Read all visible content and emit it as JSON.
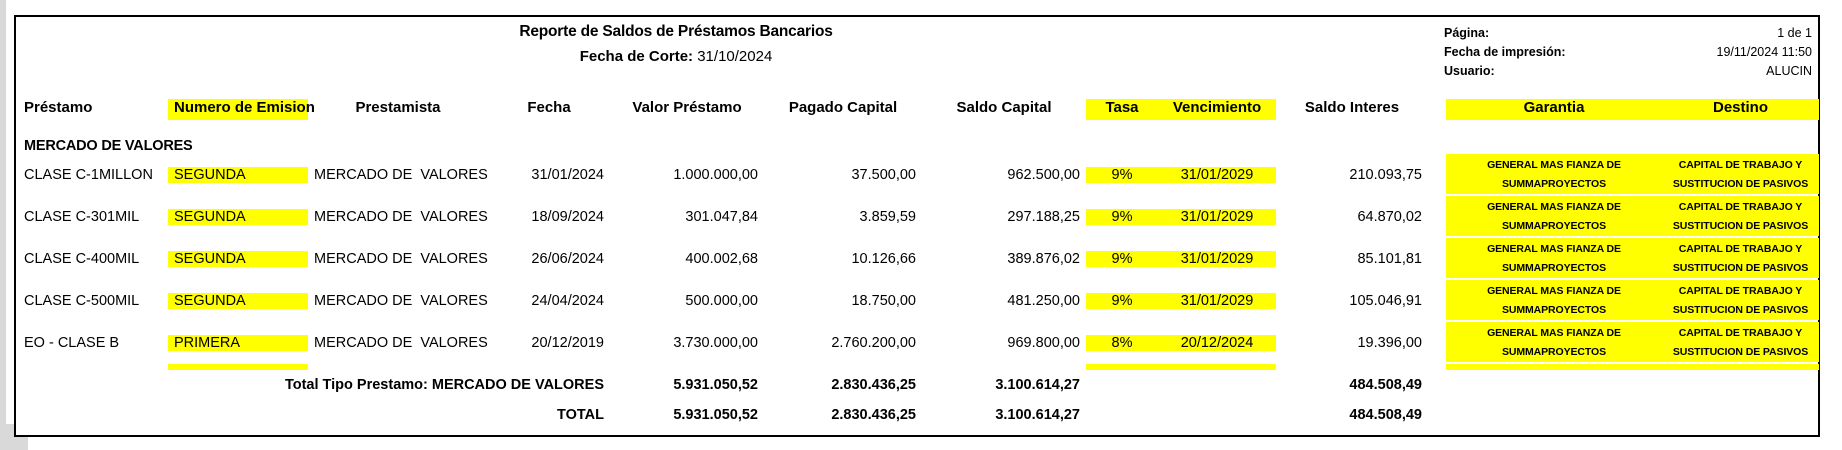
{
  "colors": {
    "highlight": "#FFFF00",
    "window_edge": "#d9d9d9"
  },
  "header": {
    "title": "Reporte de Saldos de Préstamos Bancarios",
    "fecha_corte_label": "Fecha de Corte:",
    "fecha_corte_value": "31/10/2024",
    "info": {
      "pagina_label": "Página:",
      "pagina_value": "1 de 1",
      "impresion_label": "Fecha de impresión:",
      "impresion_value": "19/11/2024 11:50",
      "usuario_label": "Usuario:",
      "usuario_value": "ALUCIN"
    }
  },
  "columns": {
    "prestamo": "Préstamo",
    "emision": "Numero de Emision",
    "prestamista": "Prestamista",
    "fecha": "Fecha",
    "valor": "Valor Préstamo",
    "pagado": "Pagado Capital",
    "saldo_capital": "Saldo Capital",
    "tasa": "Tasa",
    "vencimiento": "Vencimiento",
    "saldo_interes": "Saldo Interes",
    "garantia": "Garantia",
    "destino": "Destino"
  },
  "section_label": "MERCADO DE VALORES",
  "rows": [
    {
      "prestamo": "CLASE C-1MILLON",
      "emision": "SEGUNDA",
      "prestamista": "MERCADO DE  VALORES",
      "fecha": "31/01/2024",
      "valor": "1.000.000,00",
      "pagado": "37.500,00",
      "saldo_capital": "962.500,00",
      "tasa": "9%",
      "vencimiento": "31/01/2029",
      "saldo_interes": "210.093,75",
      "garantia_l1": "GENERAL MAS FIANZA DE",
      "garantia_l2": "SUMMAPROYECTOS",
      "destino_l1": "CAPITAL DE TRABAJO Y",
      "destino_l2": "SUSTITUCION DE PASIVOS"
    },
    {
      "prestamo": "CLASE C-301MIL",
      "emision": "SEGUNDA",
      "prestamista": "MERCADO DE  VALORES",
      "fecha": "18/09/2024",
      "valor": "301.047,84",
      "pagado": "3.859,59",
      "saldo_capital": "297.188,25",
      "tasa": "9%",
      "vencimiento": "31/01/2029",
      "saldo_interes": "64.870,02",
      "garantia_l1": "GENERAL MAS FIANZA DE",
      "garantia_l2": "SUMMAPROYECTOS",
      "destino_l1": "CAPITAL DE TRABAJO Y",
      "destino_l2": "SUSTITUCION DE PASIVOS"
    },
    {
      "prestamo": "CLASE C-400MIL",
      "emision": "SEGUNDA",
      "prestamista": "MERCADO DE  VALORES",
      "fecha": "26/06/2024",
      "valor": "400.002,68",
      "pagado": "10.126,66",
      "saldo_capital": "389.876,02",
      "tasa": "9%",
      "vencimiento": "31/01/2029",
      "saldo_interes": "85.101,81",
      "garantia_l1": "GENERAL MAS FIANZA DE",
      "garantia_l2": "SUMMAPROYECTOS",
      "destino_l1": "CAPITAL DE TRABAJO Y",
      "destino_l2": "SUSTITUCION DE PASIVOS"
    },
    {
      "prestamo": "CLASE C-500MIL",
      "emision": "SEGUNDA",
      "prestamista": "MERCADO DE  VALORES",
      "fecha": "24/04/2024",
      "valor": "500.000,00",
      "pagado": "18.750,00",
      "saldo_capital": "481.250,00",
      "tasa": "9%",
      "vencimiento": "31/01/2029",
      "saldo_interes": "105.046,91",
      "garantia_l1": "GENERAL MAS FIANZA DE",
      "garantia_l2": "SUMMAPROYECTOS",
      "destino_l1": "CAPITAL DE TRABAJO Y",
      "destino_l2": "SUSTITUCION DE PASIVOS"
    },
    {
      "prestamo": "EO - CLASE B",
      "emision": "PRIMERA",
      "prestamista": "MERCADO DE  VALORES",
      "fecha": "20/12/2019",
      "valor": "3.730.000,00",
      "pagado": "2.760.200,00",
      "saldo_capital": "969.800,00",
      "tasa": "8%",
      "vencimiento": "20/12/2024",
      "saldo_interes": "19.396,00",
      "garantia_l1": "GENERAL MAS FIANZA DE",
      "garantia_l2": "SUMMAPROYECTOS",
      "destino_l1": "CAPITAL DE TRABAJO Y",
      "destino_l2": "SUSTITUCION DE PASIVOS"
    }
  ],
  "totals": {
    "tipo_label": "Total Tipo Prestamo: MERCADO DE VALORES",
    "total_label": "TOTAL",
    "valor": "5.931.050,52",
    "pagado": "2.830.436,25",
    "saldo_capital": "3.100.614,27",
    "saldo_interes": "484.508,49"
  }
}
